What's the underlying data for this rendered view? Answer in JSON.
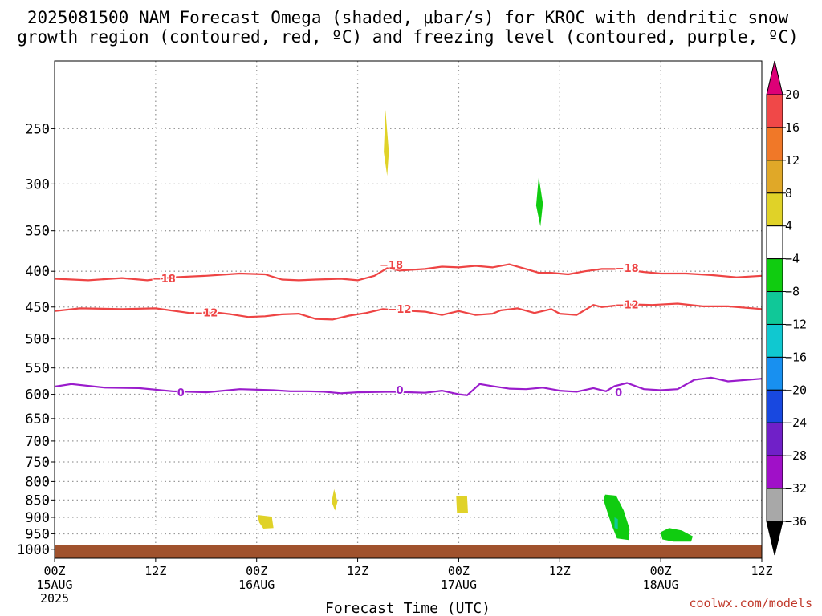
{
  "title_lines": [
    "2025081500 NAM Forecast Omega (shaded, μbar/s) for KROC with dendritic snow",
    "growth region (contoured, red, ºC) and freezing level (contoured, purple, ºC)"
  ],
  "credit": "coolwx.com/models",
  "colors": {
    "red_contour": "#ee4444",
    "purple_contour": "#9a1ccc",
    "ground": "#a0522d",
    "grid": "#9a9a9a"
  },
  "chart_data": {
    "type": "time-height cross section",
    "xlabel": "Forecast Time (UTC)",
    "x_range_hours": [
      0,
      84
    ],
    "x_ticks": [
      {
        "hour": 0,
        "lines": [
          "00Z",
          "15AUG",
          "2025"
        ]
      },
      {
        "hour": 12,
        "lines": [
          "12Z"
        ]
      },
      {
        "hour": 24,
        "lines": [
          "00Z",
          "16AUG"
        ]
      },
      {
        "hour": 36,
        "lines": [
          "12Z"
        ]
      },
      {
        "hour": 48,
        "lines": [
          "00Z",
          "17AUG"
        ]
      },
      {
        "hour": 60,
        "lines": [
          "12Z"
        ]
      },
      {
        "hour": 72,
        "lines": [
          "00Z",
          "18AUG"
        ]
      },
      {
        "hour": 84,
        "lines": [
          "12Z"
        ]
      }
    ],
    "y_ticks_hpa": [
      250,
      300,
      350,
      400,
      450,
      500,
      550,
      600,
      650,
      700,
      750,
      800,
      850,
      900,
      950,
      1000
    ],
    "y_range_hpa": [
      200,
      1030
    ],
    "y_scale": "log-pressure, inverted",
    "grid": "dotted",
    "ground_pressure_hpa": 986,
    "colorbar": {
      "placement": "right",
      "labels": [
        "20",
        "16",
        "12",
        "8",
        "4",
        "−4",
        "−8",
        "−12",
        "−16",
        "−20",
        "−24",
        "−28",
        "−32",
        "−36"
      ],
      "top_arrow_color": "#dd0077",
      "bottom_arrow_color": "#000000",
      "bands": [
        "#f04848",
        "#f07828",
        "#e0a828",
        "#e0d228",
        "#ffffff",
        "#10cc10",
        "#10c898",
        "#10c8d0",
        "#1890f0",
        "#1848e0",
        "#7020c8",
        "#a010c8",
        "#a8a8a8"
      ]
    },
    "omega_shading": [
      {
        "color": "#e0d228",
        "points": [
          [
            39.3,
            235
          ],
          [
            39.7,
            270
          ],
          [
            39.5,
            292
          ],
          [
            39.1,
            270
          ]
        ]
      },
      {
        "color": "#10cc10",
        "points": [
          [
            57.5,
            293
          ],
          [
            58.0,
            320
          ],
          [
            57.7,
            345
          ],
          [
            57.2,
            322
          ]
        ]
      },
      {
        "color": "#e0d228",
        "points": [
          [
            33.2,
            820
          ],
          [
            33.6,
            855
          ],
          [
            33.3,
            880
          ],
          [
            32.9,
            855
          ]
        ]
      },
      {
        "color": "#e0d228",
        "points": [
          [
            24.1,
            893
          ],
          [
            25.8,
            898
          ],
          [
            26.0,
            932
          ],
          [
            24.8,
            934
          ],
          [
            24.3,
            915
          ]
        ]
      },
      {
        "color": "#e0d228",
        "points": [
          [
            47.7,
            840
          ],
          [
            49.0,
            840
          ],
          [
            49.1,
            888
          ],
          [
            47.8,
            888
          ]
        ]
      },
      {
        "color": "#10cc10",
        "points": [
          [
            65.4,
            835
          ],
          [
            66.7,
            838
          ],
          [
            67.6,
            880
          ],
          [
            68.3,
            935
          ],
          [
            68.2,
            970
          ],
          [
            66.8,
            965
          ],
          [
            66.2,
            925
          ],
          [
            65.6,
            880
          ],
          [
            65.2,
            850
          ]
        ]
      },
      {
        "color": "#10c898",
        "points": [
          [
            66.5,
            900
          ],
          [
            66.9,
            905
          ],
          [
            66.9,
            935
          ],
          [
            66.5,
            932
          ]
        ]
      },
      {
        "color": "#10cc10",
        "points": [
          [
            72.0,
            945
          ],
          [
            73.0,
            932
          ],
          [
            74.5,
            940
          ],
          [
            75.8,
            958
          ],
          [
            75.6,
            975
          ],
          [
            73.5,
            975
          ],
          [
            72.2,
            968
          ]
        ]
      }
    ],
    "series": [
      {
        "name": "−18",
        "color": "#ee4444",
        "label_positions": [
          [
            13,
            410
          ],
          [
            40,
            392
          ],
          [
            68,
            396
          ]
        ],
        "x": [
          0,
          4,
          8,
          11,
          14,
          18,
          22,
          25,
          27,
          29,
          31,
          34,
          36,
          38,
          39.5,
          41,
          44,
          46,
          48,
          50,
          52,
          54,
          56,
          57.5,
          59,
          61,
          63,
          65,
          66.5,
          68,
          70,
          72,
          75,
          78,
          81,
          84
        ],
        "y": [
          410,
          412,
          409,
          412,
          408,
          406,
          403,
          404,
          411,
          412,
          411,
          410,
          412,
          406,
          396,
          399,
          397,
          394,
          395,
          393,
          395,
          391,
          397,
          402,
          402,
          404,
          400,
          397,
          397,
          398,
          401,
          403,
          403,
          405,
          408,
          406
        ]
      },
      {
        "name": "−12",
        "color": "#ee4444",
        "label_positions": [
          [
            18,
            459
          ],
          [
            41,
            453
          ],
          [
            68,
            447
          ]
        ],
        "x": [
          0,
          3,
          8,
          12,
          16,
          19,
          21,
          23,
          25,
          27,
          29,
          31,
          33,
          35,
          37,
          39,
          41,
          44,
          46,
          48,
          50,
          52,
          53,
          55,
          57,
          59,
          60,
          62,
          64,
          65,
          68,
          71,
          74,
          77,
          80,
          84
        ],
        "y": [
          456,
          452,
          453,
          452,
          459,
          458,
          461,
          465,
          464,
          461,
          460,
          468,
          469,
          463,
          459,
          453,
          455,
          457,
          462,
          456,
          462,
          460,
          455,
          452,
          459,
          453,
          460,
          462,
          447,
          450,
          446,
          447,
          445,
          449,
          449,
          453
        ]
      },
      {
        "name": "0",
        "color": "#9a1ccc",
        "label_positions": [
          [
            15,
            597
          ],
          [
            41,
            592
          ],
          [
            67,
            597
          ]
        ],
        "x": [
          0,
          2,
          6,
          10,
          14,
          18,
          22,
          26,
          28,
          30,
          32,
          34,
          36,
          40,
          44,
          46,
          48,
          49,
          50.5,
          52,
          54,
          56,
          58,
          60,
          61,
          62,
          64,
          65.5,
          66.5,
          68,
          70,
          72,
          74,
          76,
          78,
          80,
          84
        ],
        "y": [
          585,
          580,
          587,
          588,
          594,
          596,
          590,
          592,
          594,
          594,
          595,
          598,
          596,
          595,
          597,
          593,
          600,
          602,
          580,
          584,
          589,
          590,
          587,
          593,
          594,
          595,
          588,
          594,
          584,
          578,
          590,
          592,
          590,
          572,
          568,
          575,
          570
        ]
      }
    ]
  }
}
